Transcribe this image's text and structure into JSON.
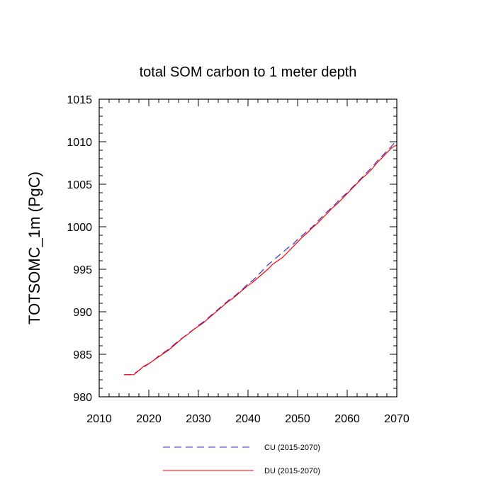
{
  "chart_data": {
    "type": "line",
    "title": "total SOM carbon to 1 meter depth",
    "xlabel": "",
    "ylabel": "TOTSOMC_1m  (PgC)",
    "xlim": [
      2010,
      2070
    ],
    "ylim": [
      980,
      1015
    ],
    "xticks": [
      2010,
      2020,
      2030,
      2040,
      2050,
      2060,
      2070
    ],
    "yticks": [
      980,
      985,
      990,
      995,
      1000,
      1005,
      1010,
      1015
    ],
    "x": [
      2015,
      2016,
      2017,
      2018,
      2019,
      2020,
      2021,
      2022,
      2023,
      2024,
      2025,
      2026,
      2027,
      2028,
      2029,
      2030,
      2031,
      2032,
      2033,
      2034,
      2035,
      2036,
      2037,
      2038,
      2039,
      2040,
      2041,
      2042,
      2043,
      2044,
      2045,
      2046,
      2047,
      2048,
      2049,
      2050,
      2051,
      2052,
      2053,
      2054,
      2055,
      2056,
      2057,
      2058,
      2059,
      2060,
      2061,
      2062,
      2063,
      2064,
      2065,
      2066,
      2067,
      2068,
      2069,
      2070
    ],
    "series": [
      {
        "name": "CU (2015-2070)",
        "color": "#3333cc",
        "style": "dashed",
        "values": [
          982.6,
          982.6,
          982.7,
          983.1,
          983.5,
          983.9,
          984.3,
          984.8,
          985.2,
          985.6,
          986.1,
          986.6,
          987.0,
          987.5,
          987.9,
          988.4,
          988.8,
          989.3,
          989.8,
          990.3,
          990.8,
          991.3,
          991.7,
          992.2,
          992.7,
          993.3,
          993.7,
          994.3,
          994.9,
          995.5,
          996.0,
          996.5,
          997.0,
          997.5,
          997.9,
          998.5,
          999.0,
          999.5,
          1000.0,
          1000.6,
          1001.2,
          1001.8,
          1002.3,
          1002.9,
          1003.5,
          1004.0,
          1004.6,
          1005.2,
          1005.8,
          1006.4,
          1007.0,
          1007.7,
          1008.3,
          1008.9,
          1009.5,
          1010.2
        ]
      },
      {
        "name": "DU (2015-2070)",
        "color": "#ff0000",
        "style": "solid",
        "values": [
          982.6,
          982.6,
          982.6,
          983.1,
          983.6,
          983.9,
          984.3,
          984.7,
          985.1,
          985.5,
          986.0,
          986.5,
          987.0,
          987.4,
          987.9,
          988.3,
          988.7,
          989.2,
          989.7,
          990.2,
          990.7,
          991.2,
          991.6,
          992.1,
          992.6,
          993.1,
          993.5,
          994.0,
          994.5,
          995.0,
          995.6,
          996.0,
          996.4,
          997.0,
          997.6,
          998.2,
          998.8,
          999.3,
          999.9,
          1000.4,
          1001.0,
          1001.6,
          1002.2,
          1002.7,
          1003.3,
          1003.9,
          1004.5,
          1005.1,
          1005.7,
          1006.2,
          1006.8,
          1007.5,
          1008.1,
          1008.7,
          1009.3,
          1009.6
        ]
      }
    ],
    "legend_position": "bottom-center"
  }
}
